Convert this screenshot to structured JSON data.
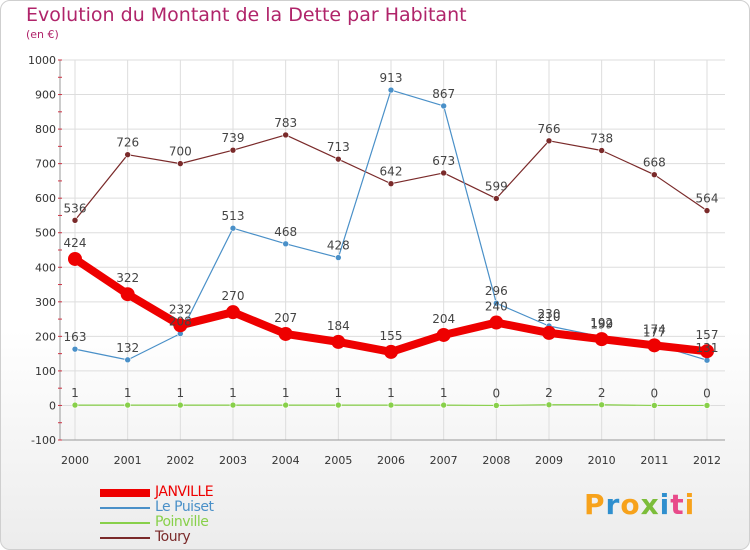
{
  "title": "Evolution du Montant de la Dette par Habitant",
  "subtitle": "(en €)",
  "logo": {
    "letters": [
      "P",
      "r",
      "o",
      "x",
      "i",
      "t",
      "i"
    ],
    "colors": [
      "#f7a21b",
      "#2f8fce",
      "#f7a21b",
      "#7cbd3a",
      "#2f8fce",
      "#e84a8a",
      "#f7a21b"
    ]
  },
  "chart_data": {
    "type": "line",
    "x": [
      "2000",
      "2001",
      "2002",
      "2003",
      "2004",
      "2005",
      "2006",
      "2007",
      "2008",
      "2009",
      "2010",
      "2011",
      "2012"
    ],
    "ylim": [
      -100,
      1000
    ],
    "yticks": [
      "-100",
      "0",
      "100",
      "200",
      "300",
      "400",
      "500",
      "600",
      "700",
      "800",
      "900",
      "1000"
    ],
    "grid": true,
    "legend_position": "bottom-left",
    "series": [
      {
        "name": "JANVILLE",
        "color": "#ee0000",
        "values": [
          424,
          322,
          232,
          270,
          207,
          184,
          155,
          204,
          240,
          210,
          192,
          174,
          157
        ],
        "labels": [
          "424",
          "322",
          "232",
          "270",
          "207",
          "184",
          "155",
          "204",
          "240",
          "210",
          "192",
          "174",
          "157"
        ]
      },
      {
        "name": "Le Puiset",
        "color": "#4a90c8",
        "values": [
          163,
          132,
          208,
          513,
          468,
          428,
          913,
          867,
          296,
          230,
          199,
          177,
          131
        ],
        "labels": [
          "163",
          "132",
          "208",
          "513",
          "468",
          "428",
          "913",
          "867",
          "296",
          "230",
          "199",
          "177",
          "131"
        ]
      },
      {
        "name": "Poinville",
        "color": "#88d04a",
        "values": [
          1,
          1,
          1,
          1,
          1,
          1,
          1,
          1,
          0,
          2,
          2,
          0,
          0
        ],
        "labels": [
          "1",
          "1",
          "1",
          "1",
          "1",
          "1",
          "1",
          "1",
          "0",
          "2",
          "2",
          "0",
          "0"
        ]
      },
      {
        "name": "Toury",
        "color": "#7a2a2a",
        "values": [
          536,
          726,
          700,
          739,
          783,
          713,
          642,
          673,
          599,
          766,
          738,
          668,
          564
        ],
        "labels": [
          "536",
          "726",
          "700",
          "739",
          "783",
          "713",
          "642",
          "673",
          "599",
          "766",
          "738",
          "668",
          "564"
        ]
      }
    ]
  }
}
